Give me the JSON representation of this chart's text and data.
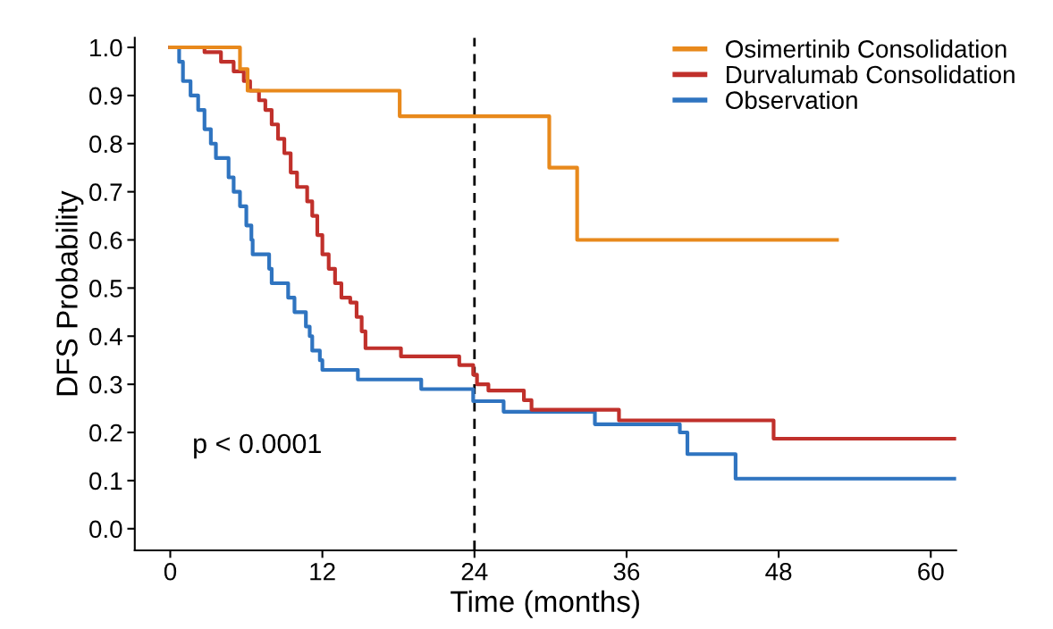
{
  "chart_data": {
    "type": "step",
    "xlabel": "Time (months)",
    "ylabel": "DFS Probability",
    "xlim": [
      -2.8,
      62
    ],
    "xticks": [
      0,
      12,
      24,
      36,
      48,
      60
    ],
    "ylim": [
      -0.045,
      1.02
    ],
    "yticks": [
      {
        "value": 0,
        "label": "0.0"
      },
      {
        "value": 0.1,
        "label": "0.1"
      },
      {
        "value": 0.2,
        "label": "0.2"
      },
      {
        "value": 0.3,
        "label": "0.3"
      },
      {
        "value": 0.4,
        "label": "0.4"
      },
      {
        "value": 0.5,
        "label": "0.5"
      },
      {
        "value": 0.6,
        "label": "0.6"
      },
      {
        "value": 0.7,
        "label": "0.7"
      },
      {
        "value": 0.8,
        "label": "0.8"
      },
      {
        "value": 0.9,
        "label": "0.9"
      },
      {
        "value": 1,
        "label": "1.0"
      }
    ],
    "grid": false,
    "legend": "top right",
    "line_style": "solid",
    "marker": "none",
    "ref_lines": [
      {
        "axis": "x",
        "value": 24,
        "label": null,
        "color": "#000000",
        "line_style": "dashed"
      }
    ],
    "annotations": [
      "p < 0.0001"
    ],
    "series": [
      {
        "name": "Osimertinib Consolidation",
        "color": "#e8891c",
        "x": [
          0,
          5.5,
          6.1,
          18.1,
          29.9,
          32.1,
          52.6
        ],
        "values": [
          1.0,
          0.955,
          0.91,
          0.857,
          0.75,
          0.6,
          0.6
        ]
      },
      {
        "name": "Durvalumab Consolidation",
        "color": "#c0302b",
        "x": [
          0,
          2.7,
          4,
          5,
          5.8,
          6.3,
          7,
          7.5,
          8,
          8.5,
          9,
          9.5,
          10,
          10.8,
          11.2,
          11.6,
          12,
          12.5,
          13,
          13.5,
          14.2,
          14.7,
          15.1,
          15.4,
          18.2,
          22.8,
          23.9,
          24.2,
          25.1,
          27.9,
          28.5,
          35.4,
          47.6,
          62
        ],
        "values": [
          1.0,
          0.99,
          0.97,
          0.95,
          0.93,
          0.91,
          0.89,
          0.87,
          0.84,
          0.81,
          0.78,
          0.74,
          0.71,
          0.68,
          0.65,
          0.61,
          0.57,
          0.54,
          0.51,
          0.48,
          0.47,
          0.44,
          0.41,
          0.375,
          0.358,
          0.34,
          0.32,
          0.3,
          0.287,
          0.267,
          0.247,
          0.225,
          0.187,
          0.187
        ]
      },
      {
        "name": "Observation",
        "color": "#2f74c0",
        "x": [
          0,
          0.7,
          1,
          1.6,
          2.2,
          2.7,
          3.2,
          3.6,
          4.6,
          5,
          5.5,
          6,
          6.4,
          6.5,
          7.8,
          8,
          9.3,
          9.8,
          10.7,
          11,
          11.2,
          11.8,
          12,
          14.8,
          19.8,
          23.9,
          26.3,
          33.5,
          40.2,
          40.8,
          44.6,
          62
        ],
        "values": [
          1.0,
          0.97,
          0.93,
          0.9,
          0.87,
          0.83,
          0.8,
          0.77,
          0.73,
          0.7,
          0.67,
          0.63,
          0.6,
          0.57,
          0.54,
          0.51,
          0.48,
          0.45,
          0.42,
          0.4,
          0.37,
          0.35,
          0.33,
          0.31,
          0.29,
          0.265,
          0.243,
          0.217,
          0.2,
          0.155,
          0.104,
          0.104
        ]
      }
    ]
  }
}
